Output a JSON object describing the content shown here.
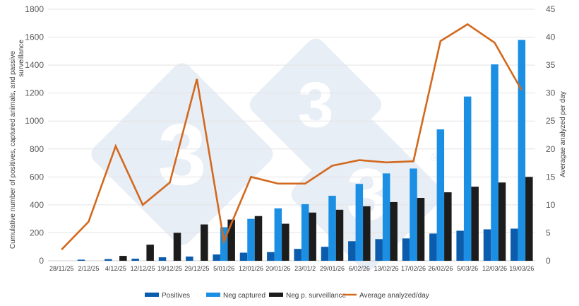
{
  "chart_data": {
    "type": "bar",
    "title": "",
    "xlabel": "",
    "ylabel": "Cumulative number of positives, captured animals, and passive surveillance",
    "y2label": "Averagae analyzed per day",
    "ylim": [
      0,
      1800
    ],
    "y2lim": [
      0,
      45
    ],
    "yticks": [
      0,
      200,
      400,
      600,
      800,
      1000,
      1200,
      1400,
      1600,
      1800
    ],
    "y2ticks": [
      0,
      5,
      10,
      15,
      20,
      25,
      30,
      35,
      40,
      45
    ],
    "grid": true,
    "legend_position": "bottom",
    "categories": [
      "28/11/25",
      "2/12/25",
      "4/12/25",
      "12/12/25",
      "19/12/25",
      "29/12/25",
      "5/01/26",
      "12/01/26",
      "20/01/26",
      "23/01/2",
      "29/01/26",
      "6/02/26",
      "13/02/26",
      "17/02/26",
      "26/02/26",
      "5/03/26",
      "12/03/26",
      "19/03/26"
    ],
    "series": [
      {
        "name": "Positives",
        "type": "bar",
        "axis": "left",
        "color": "#0B5CAD",
        "values": [
          0,
          8,
          12,
          15,
          25,
          30,
          45,
          58,
          62,
          85,
          100,
          140,
          155,
          160,
          195,
          215,
          225,
          230
        ]
      },
      {
        "name": "Neg captured",
        "type": "bar",
        "axis": "left",
        "color": "#1A8FE3",
        "values": [
          0,
          0,
          0,
          0,
          0,
          0,
          240,
          300,
          375,
          405,
          465,
          550,
          625,
          660,
          940,
          1175,
          1405,
          1580
        ]
      },
      {
        "name": "Neg p. surveillance",
        "type": "bar",
        "axis": "left",
        "color": "#1C1C1C",
        "values": [
          0,
          0,
          35,
          115,
          200,
          260,
          295,
          320,
          265,
          345,
          365,
          390,
          420,
          450,
          490,
          530,
          560,
          600
        ]
      },
      {
        "name": "Average analyzed/day",
        "type": "line",
        "axis": "right",
        "color": "#D2691E",
        "values": [
          2,
          7,
          20.5,
          10,
          14,
          32.5,
          3.5,
          15,
          13.8,
          13.8,
          17,
          18,
          17.6,
          17.8,
          39.3,
          42.3,
          39,
          30.5
        ]
      }
    ]
  },
  "legend": {
    "items": [
      {
        "label": "Positives",
        "color": "#0B5CAD",
        "kind": "bar"
      },
      {
        "label": "Neg captured",
        "color": "#1A8FE3",
        "kind": "bar"
      },
      {
        "label": "Neg p. surveillance",
        "color": "#1C1C1C",
        "kind": "bar"
      },
      {
        "label": "Average analyzed/day",
        "color": "#D2691E",
        "kind": "line"
      }
    ]
  },
  "axes": {
    "left_title_line1": "Cumulative number of positives, captured animals, and passive",
    "left_title_line2": "surveillance",
    "right_title": "Averagae analyzed per day"
  },
  "watermark": {
    "text": "3",
    "registered": "®",
    "color": "#E8EEF6"
  }
}
